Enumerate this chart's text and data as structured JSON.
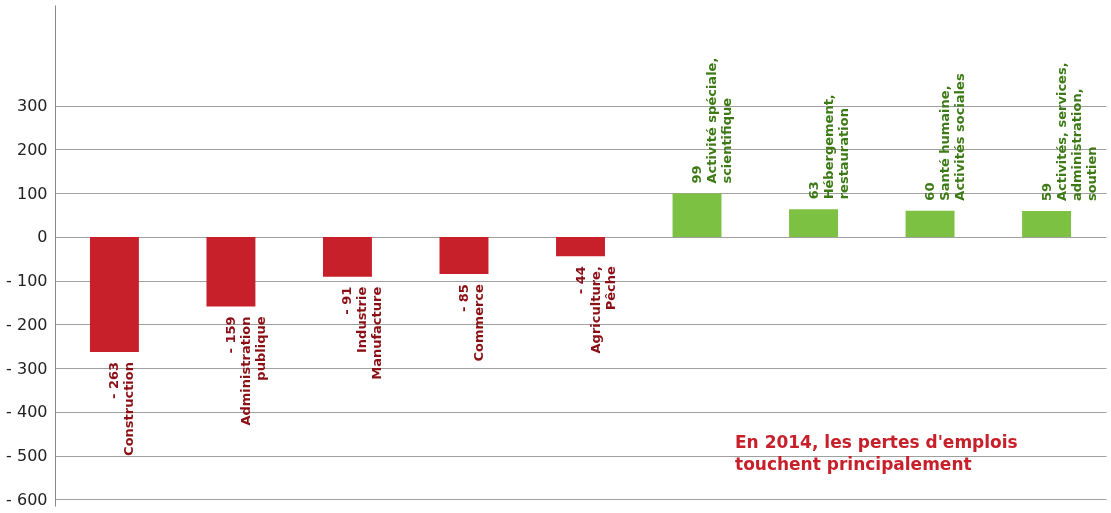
{
  "chart_data": {
    "type": "bar",
    "categories": [
      "Construction",
      "Administration\npublique",
      "Industrie\nManufacture",
      "Commerce",
      "Agriculture,\nPêche",
      "Activité spéciale,\nscientifique",
      "Hébergement,\nrestauration",
      "Santé humaine,\nActivités sociales",
      "Activités, services,\nadministration,\nsoutien"
    ],
    "values": [
      -263,
      -159,
      -91,
      -85,
      -44,
      99,
      63,
      60,
      59
    ],
    "value_labels": [
      "- 263",
      "- 159",
      "- 91",
      "- 85",
      "- 44",
      "99",
      "63",
      "60",
      "59"
    ],
    "colors": [
      "#c8202a",
      "#c8202a",
      "#c8202a",
      "#c8202a",
      "#c8202a",
      "#7dc142",
      "#7dc142",
      "#7dc142",
      "#7dc142"
    ],
    "ylim": [
      -615,
      530
    ],
    "yticks": [
      {
        "value": 300,
        "label": "300"
      },
      {
        "value": 200,
        "label": "200"
      },
      {
        "value": 100,
        "label": "100"
      },
      {
        "value": 0,
        "label": "0"
      },
      {
        "value": -100,
        "label": "- 100"
      },
      {
        "value": -200,
        "label": "- 200"
      },
      {
        "value": -300,
        "label": "- 300"
      },
      {
        "value": -400,
        "label": "- 400"
      },
      {
        "value": -500,
        "label": "- 500"
      },
      {
        "value": -600,
        "label": "- 600"
      }
    ],
    "grid": "y",
    "tick_labels": "y",
    "annotations": [
      "En 2014, les pertes d'emplois\ntouchent principalement"
    ]
  }
}
